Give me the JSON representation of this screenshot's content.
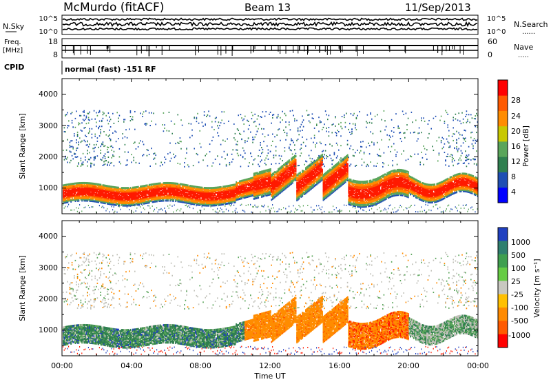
{
  "header": {
    "site": "McMurdo (fitACF)",
    "beam": "Beam 13",
    "date": "11/Sep/2013"
  },
  "noise_panel": {
    "left_label": "N.Sky",
    "right_label": "N.Search",
    "left_ticks": [
      "10^5",
      "10^0"
    ],
    "right_ticks": [
      "10^5",
      "10^0"
    ],
    "right_legend_dots": "......"
  },
  "freq_panel": {
    "left_label_line1": "Freq.",
    "left_label_line2": "[MHz]",
    "left_ticks": [
      "18",
      "8"
    ],
    "right_label": "Nave",
    "right_ticks": [
      "60",
      "0"
    ],
    "right_legend_dots": "....."
  },
  "cpid_panel": {
    "label": "CPID",
    "text": "normal (fast) -151 RF"
  },
  "power_panel": {
    "ylabel": "Slant Range [km]",
    "yticks": [
      "4000",
      "3000",
      "2000",
      "1000"
    ],
    "colorbar_label": "Power [dB]",
    "colorbar_ticks": [
      "28",
      "24",
      "20",
      "16",
      "12",
      "8",
      "4"
    ],
    "colorbar_colors": [
      "#0000ff",
      "#1f4fb4",
      "#2f7f4f",
      "#5aa55a",
      "#c8c800",
      "#ff8c00",
      "#ff5a00",
      "#ff0000"
    ]
  },
  "velocity_panel": {
    "ylabel": "Slant Range [km]",
    "yticks": [
      "4000",
      "3000",
      "2000",
      "1000"
    ],
    "colorbar_label": "Velocity [m s⁻¹]",
    "colorbar_ticks": [
      "1000",
      "500",
      "100",
      "25",
      "-25",
      "-100",
      "-500",
      "-1000"
    ],
    "colorbar_colors": [
      "#2040c0",
      "#2f7f6f",
      "#3f9f4f",
      "#66cc44",
      "#c8c8c0",
      "#ffc000",
      "#ff8a00",
      "#ff5a00",
      "#ff0000"
    ]
  },
  "x_axis": {
    "ticks": [
      "00:00",
      "04:00",
      "08:00",
      "12:00",
      "16:00",
      "20:00",
      "00:00"
    ],
    "label": "Time UT"
  },
  "chart_data": [
    {
      "type": "heatmap",
      "title": "",
      "xlabel": "Time UT",
      "ylabel": "Slant Range [km]",
      "ylim": [
        180,
        4500
      ],
      "xlim_hours": [
        0,
        24
      ],
      "colorbar": {
        "label": "Power [dB]",
        "ticks": [
          4,
          8,
          12,
          16,
          20,
          24,
          28
        ]
      }
    },
    {
      "type": "heatmap",
      "title": "",
      "xlabel": "Time UT",
      "ylabel": "Slant Range [km]",
      "ylim": [
        180,
        4500
      ],
      "xlim_hours": [
        0,
        24
      ],
      "colorbar": {
        "label": "Velocity [m s-1]",
        "ticks": [
          -1000,
          -500,
          -100,
          -25,
          25,
          100,
          500,
          1000
        ]
      }
    }
  ]
}
